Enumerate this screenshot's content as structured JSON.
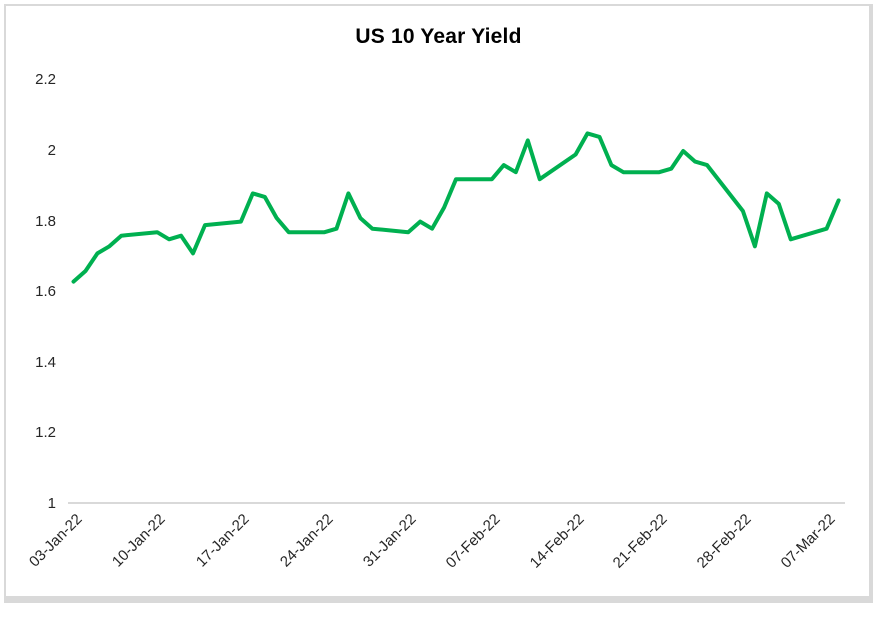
{
  "window": {
    "background": "#ffffff",
    "frame_color": "#d9d9d9"
  },
  "chart_data": {
    "type": "line",
    "title": "US 10 Year Yield",
    "x_axis_type": "date",
    "x_tick_rotation": 45,
    "grid": false,
    "legend": "none",
    "line_color": "#00B050",
    "axis_line_color": "#d9d9d9",
    "tick_label_color": "#262626",
    "ylim": [
      1,
      2.2
    ],
    "yticks": [
      {
        "label": "2.2",
        "value": 2.2
      },
      {
        "label": "2",
        "value": 2.0
      },
      {
        "label": "1.8",
        "value": 1.8
      },
      {
        "label": "1.6",
        "value": 1.6
      },
      {
        "label": "1.4",
        "value": 1.4
      },
      {
        "label": "1.2",
        "value": 1.2
      },
      {
        "label": "1",
        "value": 1.0
      }
    ],
    "xticks": [
      "03-Jan-22",
      "10-Jan-22",
      "17-Jan-22",
      "24-Jan-22",
      "31-Jan-22",
      "07-Feb-22",
      "14-Feb-22",
      "21-Feb-22",
      "28-Feb-22",
      "07-Mar-22"
    ],
    "x": [
      "03-Jan-22",
      "04-Jan-22",
      "05-Jan-22",
      "06-Jan-22",
      "07-Jan-22",
      "10-Jan-22",
      "11-Jan-22",
      "12-Jan-22",
      "13-Jan-22",
      "14-Jan-22",
      "17-Jan-22",
      "18-Jan-22",
      "19-Jan-22",
      "20-Jan-22",
      "21-Jan-22",
      "24-Jan-22",
      "25-Jan-22",
      "26-Jan-22",
      "27-Jan-22",
      "28-Jan-22",
      "31-Jan-22",
      "01-Feb-22",
      "02-Feb-22",
      "03-Feb-22",
      "04-Feb-22",
      "07-Feb-22",
      "08-Feb-22",
      "09-Feb-22",
      "10-Feb-22",
      "11-Feb-22",
      "14-Feb-22",
      "15-Feb-22",
      "16-Feb-22",
      "17-Feb-22",
      "18-Feb-22",
      "21-Feb-22",
      "22-Feb-22",
      "23-Feb-22",
      "24-Feb-22",
      "25-Feb-22",
      "28-Feb-22",
      "01-Mar-22",
      "02-Mar-22",
      "03-Mar-22",
      "04-Mar-22",
      "07-Mar-22",
      "08-Mar-22"
    ],
    "values": [
      1.63,
      1.66,
      1.71,
      1.73,
      1.76,
      1.77,
      1.75,
      1.76,
      1.71,
      1.79,
      1.8,
      1.88,
      1.87,
      1.81,
      1.77,
      1.77,
      1.78,
      1.88,
      1.81,
      1.78,
      1.77,
      1.8,
      1.78,
      1.84,
      1.92,
      1.92,
      1.96,
      1.94,
      2.03,
      1.92,
      1.99,
      2.05,
      2.04,
      1.96,
      1.94,
      1.94,
      1.95,
      2.0,
      1.97,
      1.96,
      1.83,
      1.73,
      1.88,
      1.85,
      1.75,
      1.78,
      1.86
    ]
  }
}
